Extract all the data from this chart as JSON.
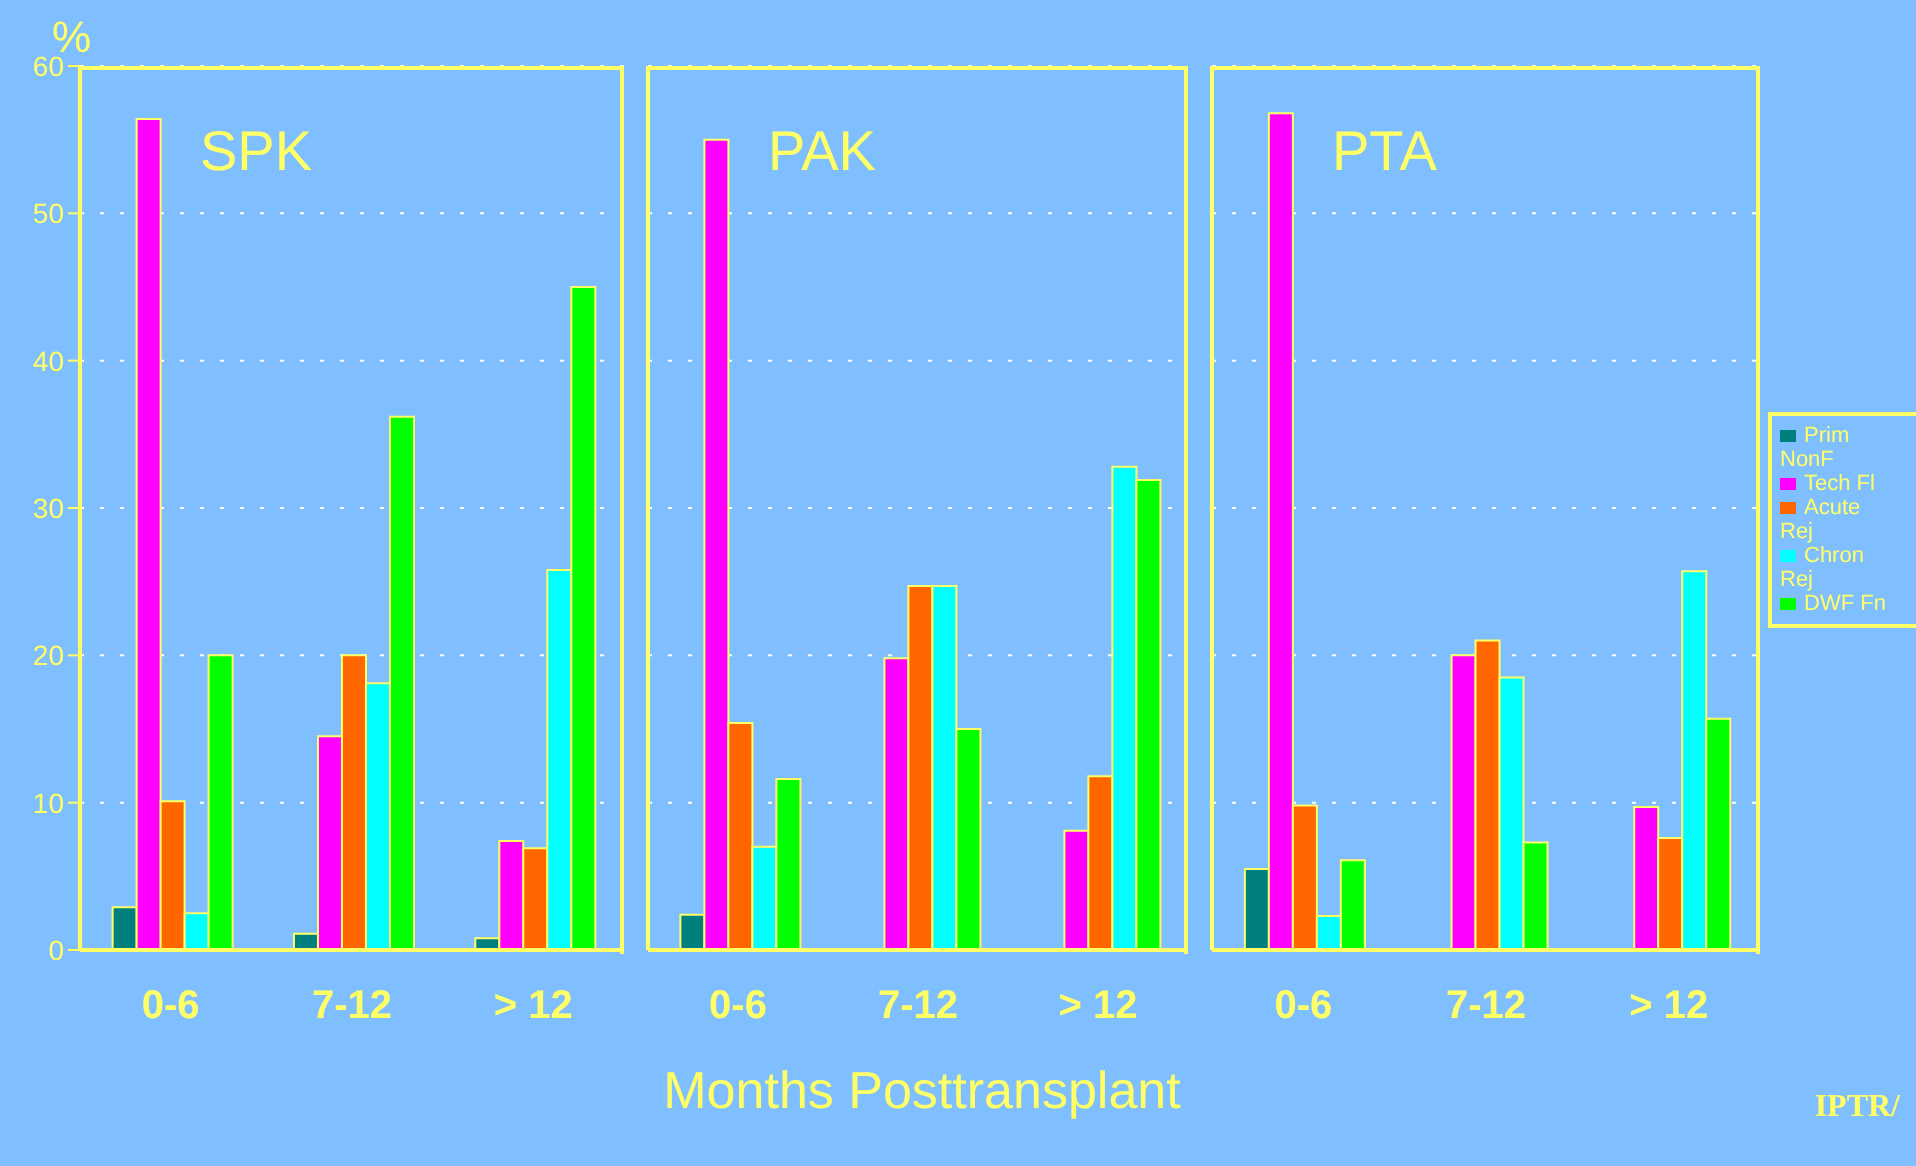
{
  "chart_data": [
    {
      "type": "bar",
      "title": "SPK",
      "ylabel": "%",
      "categories": [
        "0-6",
        "7-12",
        "> 12"
      ],
      "ylim": [
        0,
        60
      ],
      "yticks": [
        0,
        10,
        20,
        30,
        40,
        50,
        60
      ],
      "grid": "y",
      "series": [
        {
          "color": "#007f7f",
          "values": [
            2.9,
            1.1,
            0.8
          ]
        },
        {
          "color": "#ff00ff",
          "values": [
            56.4,
            14.5,
            7.4
          ]
        },
        {
          "color": "#ff6600",
          "values": [
            10.1,
            20,
            6.9
          ]
        },
        {
          "color": "#00ffff",
          "values": [
            2.5,
            18.1,
            25.8
          ]
        },
        {
          "color": "#00ff00",
          "values": [
            20,
            36.2,
            45
          ]
        }
      ]
    },
    {
      "type": "bar",
      "title": "PAK",
      "xlabel": "Months Posttransplant",
      "categories": [
        "0-6",
        "7-12",
        "> 12"
      ],
      "ylim": [
        0,
        60
      ],
      "yticks": [
        0,
        10,
        20,
        30,
        40,
        50,
        60
      ],
      "grid": "y",
      "tick_labels": "x",
      "series": [
        {
          "color": "#007f7f",
          "values": [
            2.4,
            0,
            0
          ]
        },
        {
          "color": "#ff00ff",
          "values": [
            55,
            19.8,
            8.1
          ]
        },
        {
          "color": "#ff6600",
          "values": [
            15.4,
            24.7,
            11.8
          ]
        },
        {
          "color": "#00ffff",
          "values": [
            7,
            24.7,
            32.8
          ]
        },
        {
          "color": "#00ff00",
          "values": [
            11.6,
            15,
            31.9
          ]
        }
      ]
    },
    {
      "type": "bar",
      "title": "PTA",
      "categories": [
        "0-6",
        "7-12",
        "> 12"
      ],
      "ylim": [
        0,
        60
      ],
      "yticks": [
        0,
        10,
        20,
        30,
        40,
        50,
        60
      ],
      "grid": "y",
      "tick_labels": "x",
      "legend": "right",
      "annotations": [
        "IPTR/"
      ],
      "series": [
        {
          "name": "Prim NonF",
          "color": "#007f7f",
          "values": [
            5.5,
            0,
            0
          ]
        },
        {
          "name": "Tech Fl",
          "color": "#ff00ff",
          "values": [
            56.8,
            20,
            9.7
          ]
        },
        {
          "name": "Acute Rej",
          "color": "#ff6600",
          "values": [
            9.8,
            21,
            7.6
          ]
        },
        {
          "name": "Chron Rej",
          "color": "#00ffff",
          "values": [
            2.3,
            18.5,
            25.7
          ]
        },
        {
          "name": "DWF Fn",
          "color": "#00ff00",
          "values": [
            6.1,
            7.3,
            15.7
          ]
        }
      ]
    }
  ]
}
